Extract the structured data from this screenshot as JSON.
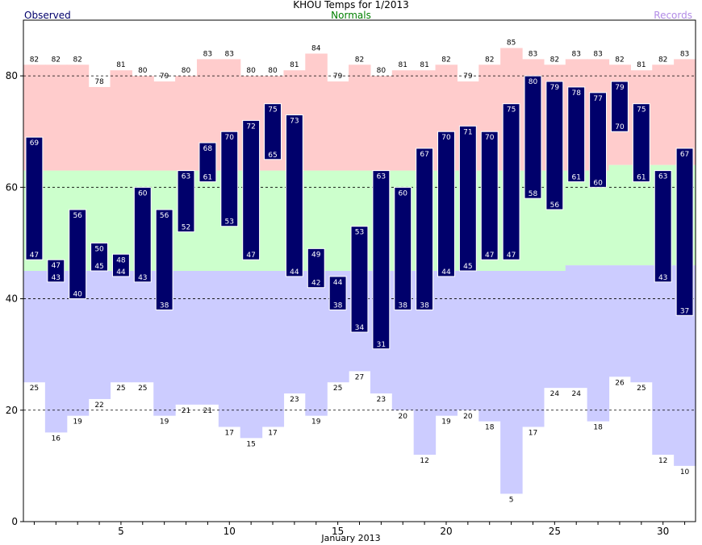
{
  "chart_data": {
    "type": "bar",
    "title": "KHOU Temps for 1/2013",
    "legend": {
      "observed": "Observed",
      "normals": "Normals",
      "records": "Records"
    },
    "xlabel": "January 2013",
    "days": [
      1,
      2,
      3,
      4,
      5,
      6,
      7,
      8,
      9,
      10,
      11,
      12,
      13,
      14,
      15,
      16,
      17,
      18,
      19,
      20,
      21,
      22,
      23,
      24,
      25,
      26,
      27,
      28,
      29,
      30,
      31
    ],
    "x_ticks": [
      5,
      10,
      15,
      20,
      25,
      30
    ],
    "y_ticks": [
      0,
      20,
      40,
      60,
      80
    ],
    "ylim": [
      0,
      90
    ],
    "observed_high": [
      69,
      47,
      56,
      50,
      48,
      60,
      56,
      63,
      68,
      70,
      72,
      75,
      73,
      49,
      44,
      53,
      63,
      60,
      67,
      70,
      71,
      70,
      75,
      80,
      79,
      78,
      77,
      79,
      75,
      63,
      67
    ],
    "observed_low": [
      47,
      43,
      40,
      45,
      44,
      43,
      38,
      52,
      61,
      53,
      47,
      65,
      44,
      42,
      38,
      34,
      31,
      38,
      38,
      44,
      45,
      47,
      47,
      58,
      56,
      61,
      60,
      70,
      61,
      43,
      37
    ],
    "record_high": [
      82,
      82,
      82,
      78,
      81,
      80,
      79,
      80,
      83,
      83,
      80,
      80,
      81,
      84,
      79,
      82,
      80,
      81,
      81,
      82,
      79,
      82,
      85,
      83,
      82,
      83,
      83,
      82,
      81,
      82,
      83
    ],
    "record_low": [
      25,
      16,
      19,
      22,
      25,
      25,
      19,
      21,
      21,
      17,
      15,
      17,
      23,
      19,
      25,
      27,
      23,
      20,
      12,
      19,
      20,
      18,
      5,
      17,
      24,
      24,
      18,
      26,
      25,
      12,
      10
    ],
    "normal_high": [
      63,
      63,
      63,
      63,
      63,
      63,
      63,
      63,
      63,
      63,
      63,
      63,
      63,
      63,
      63,
      63,
      63,
      63,
      63,
      63,
      63,
      63,
      63,
      63,
      63,
      63,
      63,
      64,
      64,
      64,
      64
    ],
    "normal_low": [
      45,
      45,
      45,
      45,
      45,
      45,
      45,
      45,
      45,
      45,
      45,
      45,
      45,
      45,
      45,
      45,
      45,
      45,
      45,
      45,
      45,
      45,
      45,
      45,
      45,
      46,
      46,
      46,
      46,
      46,
      46
    ],
    "colors": {
      "observed": "#00006b",
      "normal": "#ccffcc",
      "record_high": "#ffcccc",
      "record_low": "#ccccff",
      "normals_text": "#008000",
      "records_text": "#b28ce6"
    },
    "grid": "dashed horizontal at 20, 40, 60, 80"
  }
}
